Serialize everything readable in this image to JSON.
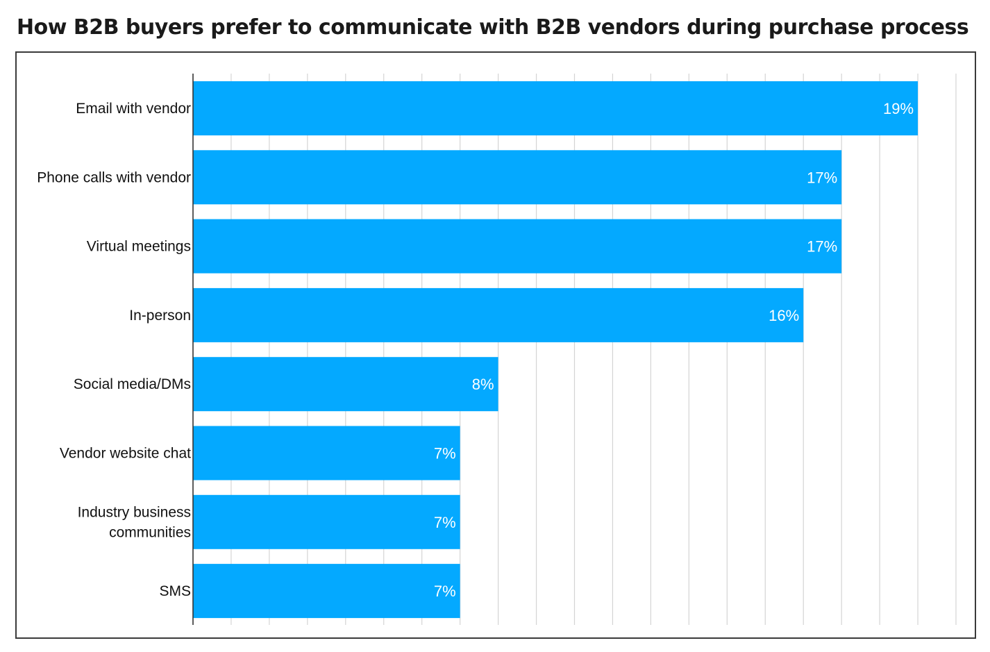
{
  "chart_data": {
    "type": "bar",
    "orientation": "horizontal",
    "title": "How B2B buyers prefer to communicate with B2B vendors during purchase process",
    "categories": [
      "Email with vendor",
      "Phone calls with vendor",
      "Virtual meetings",
      "In-person",
      "Social media/DMs",
      "Vendor website chat",
      "Industry business communities",
      "SMS"
    ],
    "category_lines": [
      [
        "Email with vendor"
      ],
      [
        "Phone calls with vendor"
      ],
      [
        "Virtual meetings"
      ],
      [
        "In-person"
      ],
      [
        "Social media/DMs"
      ],
      [
        "Vendor website chat"
      ],
      [
        "Industry business",
        "communities"
      ],
      [
        "SMS"
      ]
    ],
    "values": [
      19,
      17,
      17,
      16,
      8,
      7,
      7,
      7
    ],
    "value_labels": [
      "19%",
      "17%",
      "17%",
      "16%",
      "8%",
      "7%",
      "7%",
      "7%"
    ],
    "xlim": [
      0,
      20
    ],
    "grid": true,
    "xlabel": "",
    "ylabel": "",
    "colors": {
      "bar": "#04A9FF",
      "grid": "#d4d4d4",
      "axis": "#333333"
    }
  }
}
